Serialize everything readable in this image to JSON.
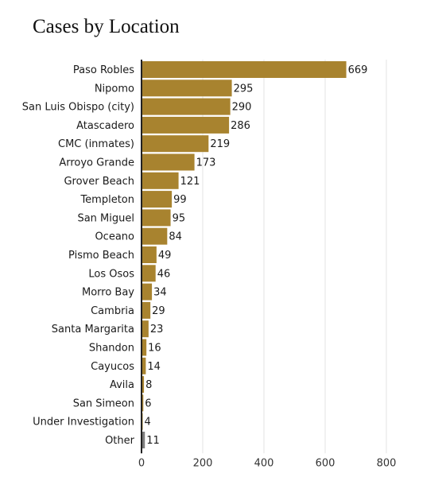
{
  "chart_data": {
    "type": "bar",
    "orientation": "horizontal",
    "title": "Cases by Location",
    "xlabel": "",
    "ylabel": "",
    "xlim": [
      0,
      800
    ],
    "xticks": [
      0,
      200,
      400,
      600,
      800
    ],
    "grid": true,
    "colors": {
      "bar": "#a8832f",
      "other_bar": "#7d7d7d",
      "grid": "#e3e3e3",
      "axis": "#222222"
    },
    "categories": [
      "Paso Robles",
      "Nipomo",
      "San Luis Obispo (city)",
      "Atascadero",
      "CMC (inmates)",
      "Arroyo Grande",
      "Grover Beach",
      "Templeton",
      "San Miguel",
      "Oceano",
      "Pismo Beach",
      "Los Osos",
      "Morro Bay",
      "Cambria",
      "Santa Margarita",
      "Shandon",
      "Cayucos",
      "Avila",
      "San Simeon",
      "Under Investigation",
      "Other"
    ],
    "values": [
      669,
      295,
      290,
      286,
      219,
      173,
      121,
      99,
      95,
      84,
      49,
      46,
      34,
      29,
      23,
      16,
      14,
      8,
      6,
      4,
      11
    ]
  }
}
